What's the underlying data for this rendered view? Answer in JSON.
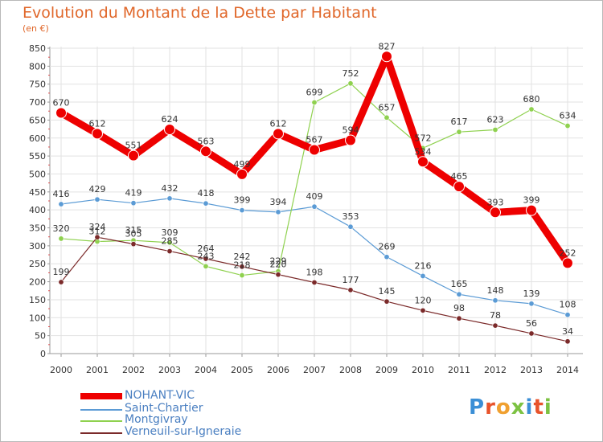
{
  "title": "Evolution du Montant de la Dette par Habitant",
  "subtitle": "(en €)",
  "logo_text": "Proxiti",
  "chart_data": {
    "type": "line",
    "x": [
      "2000",
      "2001",
      "2002",
      "2003",
      "2004",
      "2005",
      "2006",
      "2007",
      "2008",
      "2009",
      "2010",
      "2011",
      "2012",
      "2013",
      "2014"
    ],
    "ylim": [
      0,
      850
    ],
    "yticks": [
      0,
      50,
      100,
      150,
      200,
      250,
      300,
      350,
      400,
      450,
      500,
      550,
      600,
      650,
      700,
      750,
      800,
      850
    ],
    "grid": true,
    "legend_position": "bottom-left",
    "series": [
      {
        "name": "NOHANT-VIC",
        "color": "#ee0000",
        "values": [
          670,
          612,
          551,
          624,
          563,
          499,
          612,
          567,
          594,
          827,
          534,
          465,
          393,
          399,
          252
        ]
      },
      {
        "name": "Saint-Chartier",
        "color": "#5b9bd5",
        "values": [
          416,
          429,
          419,
          432,
          418,
          399,
          394,
          409,
          353,
          269,
          216,
          165,
          148,
          139,
          108
        ]
      },
      {
        "name": "Montgivray",
        "color": "#8fd14f",
        "values": [
          320,
          312,
          315,
          309,
          243,
          218,
          229,
          699,
          752,
          657,
          572,
          617,
          623,
          680,
          634
        ]
      },
      {
        "name": "Verneuil-sur-Igneraie",
        "color": "#7b2a2a",
        "values": [
          199,
          324,
          305,
          285,
          264,
          242,
          220,
          198,
          177,
          145,
          120,
          98,
          78,
          56,
          34
        ]
      }
    ]
  }
}
